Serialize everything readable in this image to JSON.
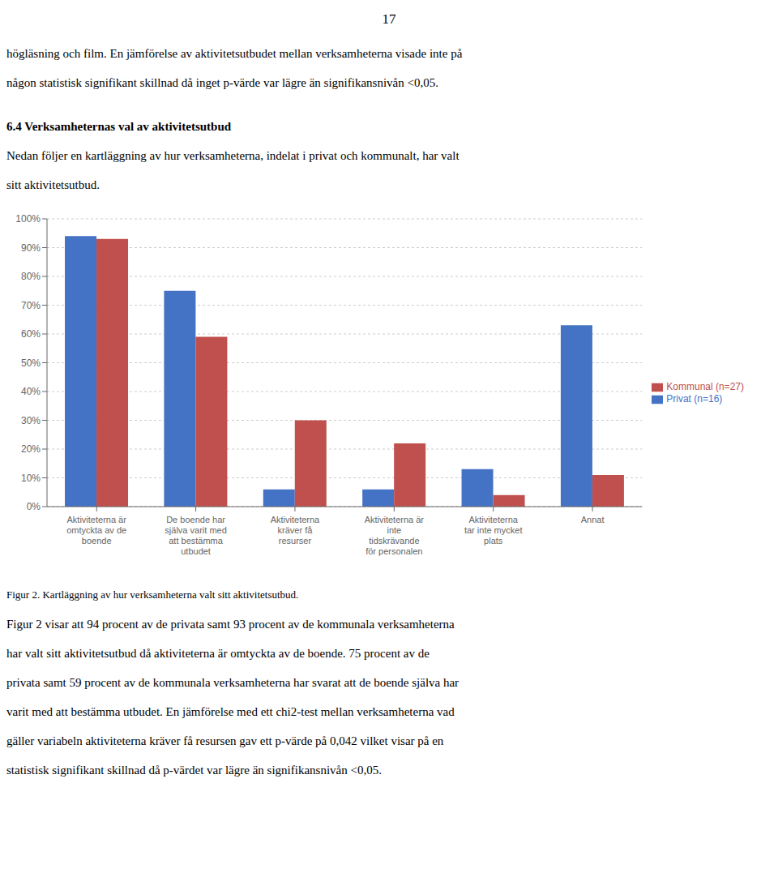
{
  "chart_data": {
    "type": "bar",
    "page_number": "17",
    "text_above": [
      "högläsning och film. En jämförelse av aktivitetsutbudet mellan verksamheterna visade inte på",
      "någon statistisk signifikant skillnad då inget p-värde var lägre än signifikansnivån <0,05."
    ],
    "heading": "6.4 Verksamheternas val av aktivitetsutbud",
    "text_intro": [
      "Nedan följer en kartläggning av hur verksamheterna, indelat i privat och kommunalt, har valt",
      "sitt aktivitetsutbud."
    ],
    "caption": "Figur 2. Kartläggning av hur verksamheterna valt sitt aktivitetsutbud.",
    "text_below": [
      "Figur 2 visar att 94 procent av de privata samt 93 procent av de kommunala verksamheterna",
      "har valt sitt aktivitetsutbud då aktiviteterna är omtyckta av de boende. 75 procent av de",
      "privata samt 59 procent av de kommunala verksamheterna har svarat att de boende själva har",
      "varit med att bestämma utbudet. En jämförelse med ett chi2-test mellan verksamheterna vad",
      "gäller variabeln aktiviteterna kräver få resursen gav ett p-värde på 0,042 vilket visar på en",
      "statistisk signifikant skillnad då p-värdet var lägre än signifikansnivån <0,05."
    ],
    "categories": [
      "Aktiviteterna är\nomtyckta av de\nboende",
      "De boende har\nsjälva varit med\natt bestämma\nutbudet",
      "Aktiviteterna\nkräver få\nresurser",
      "Aktiviteterna är\ninte\ntidskrävande\nför personalen",
      "Aktiviteterna\ntar inte mycket\nplats",
      "Annat"
    ],
    "series": [
      {
        "name": "Privat (n=16)",
        "color": "#4472C4",
        "values": [
          0.94,
          0.75,
          0.06,
          0.06,
          0.13,
          0.63
        ]
      },
      {
        "name": "Kommunal (n=27)",
        "color": "#C0504D",
        "values": [
          0.93,
          0.59,
          0.3,
          0.22,
          0.04,
          0.11
        ]
      }
    ],
    "ylim": [
      0,
      1.0
    ],
    "yticks": [
      {
        "value": 0.0,
        "label": "0%"
      },
      {
        "value": 0.1,
        "label": "10%"
      },
      {
        "value": 0.2,
        "label": "20%"
      },
      {
        "value": 0.3,
        "label": "30%"
      },
      {
        "value": 0.4,
        "label": "40%"
      },
      {
        "value": 0.5,
        "label": "50%"
      },
      {
        "value": 0.6,
        "label": "60%"
      },
      {
        "value": 0.7,
        "label": "70%"
      },
      {
        "value": 0.8,
        "label": "80%"
      },
      {
        "value": 0.9,
        "label": "90%"
      },
      {
        "value": 1.0,
        "label": "100%"
      }
    ],
    "grid": true,
    "legend": "right"
  }
}
